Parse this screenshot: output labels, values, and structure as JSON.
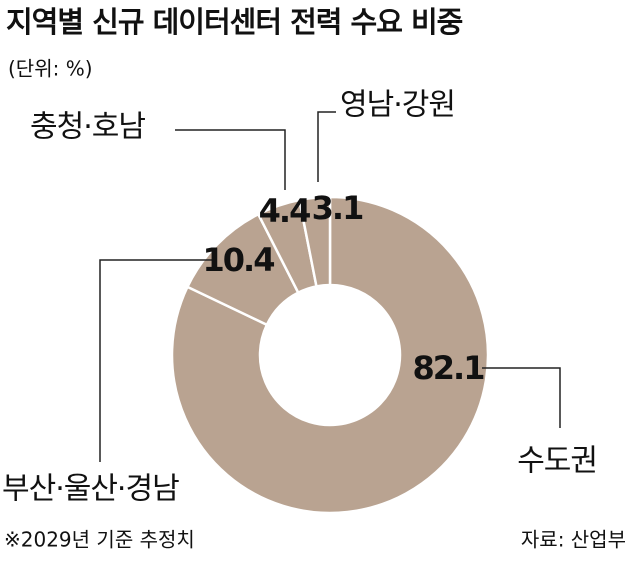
{
  "chart_data": {
    "type": "donut",
    "title": "지역별 신규 데이터센터 전력 수요 비중",
    "unit_note": "(단위: %)",
    "categories": [
      "수도권",
      "부산·울산·경남",
      "충청·호남",
      "영남·강원"
    ],
    "values": [
      82.1,
      10.4,
      4.4,
      3.1
    ],
    "color": "#b9a391",
    "note": "※2029년 기준 추정치",
    "source": "자료: 산업부"
  }
}
